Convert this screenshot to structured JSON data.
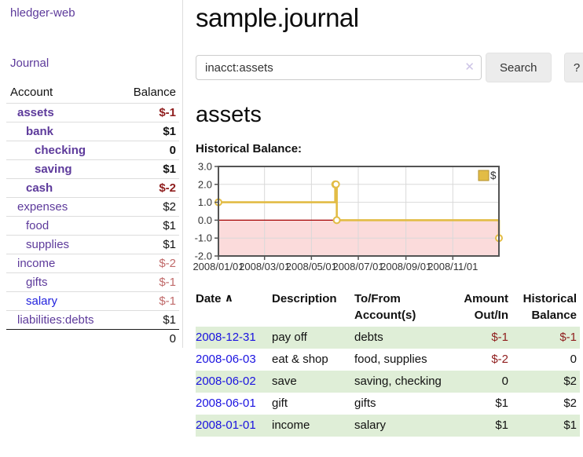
{
  "sidebar": {
    "app_title": "hledger-web",
    "journal_link": "Journal",
    "accounts_table": {
      "account_header": "Account",
      "balance_header": "Balance",
      "rows": [
        {
          "name": "assets",
          "balance": "$-1",
          "depth": 1,
          "bold": true,
          "balance_style": "neg-strong",
          "link_style": "purple"
        },
        {
          "name": "bank",
          "balance": "$1",
          "depth": 2,
          "bold": true,
          "balance_style": "",
          "link_style": "purple"
        },
        {
          "name": "checking",
          "balance": "0",
          "depth": 3,
          "bold": true,
          "balance_style": "",
          "link_style": "purple"
        },
        {
          "name": "saving",
          "balance": "$1",
          "depth": 3,
          "bold": true,
          "balance_style": "",
          "link_style": "purple"
        },
        {
          "name": "cash",
          "balance": "$-2",
          "depth": 2,
          "bold": true,
          "balance_style": "neg-strong",
          "link_style": "purple"
        },
        {
          "name": "expenses",
          "balance": "$2",
          "depth": 1,
          "bold": false,
          "balance_style": "",
          "link_style": "purple"
        },
        {
          "name": "food",
          "balance": "$1",
          "depth": 2,
          "bold": false,
          "balance_style": "",
          "link_style": "purple"
        },
        {
          "name": "supplies",
          "balance": "$1",
          "depth": 2,
          "bold": false,
          "balance_style": "",
          "link_style": "purple"
        },
        {
          "name": "income",
          "balance": "$-2",
          "depth": 1,
          "bold": false,
          "balance_style": "neg-soft",
          "link_style": "purple"
        },
        {
          "name": "gifts",
          "balance": "$-1",
          "depth": 2,
          "bold": false,
          "balance_style": "neg-soft",
          "link_style": "purple"
        },
        {
          "name": "salary",
          "balance": "$-1",
          "depth": 2,
          "bold": false,
          "balance_style": "neg-soft",
          "link_style": "blue"
        },
        {
          "name": "liabilities:debts",
          "balance": "$1",
          "depth": 1,
          "bold": false,
          "balance_style": "",
          "link_style": "purple"
        }
      ],
      "total": "0"
    }
  },
  "main": {
    "title": "sample.journal",
    "search": {
      "value": "inacct:assets",
      "clear_icon": "✕",
      "search_button": "Search",
      "help_button": "?"
    },
    "account_heading": "assets",
    "chart_title": "Historical Balance:",
    "register": {
      "headers": {
        "date": "Date",
        "sort_icon": "∧",
        "description": "Description",
        "accounts": "To/From Account(s)",
        "amount": "Amount Out/In",
        "balance": "Historical Balance"
      },
      "rows": [
        {
          "date": "2008-12-31",
          "description": "pay off",
          "accounts": "debts",
          "amount": "$-1",
          "balance": "$-1",
          "amount_style": "neg",
          "balance_style": "neg",
          "shaded": true
        },
        {
          "date": "2008-06-03",
          "description": "eat & shop",
          "accounts": "food, supplies",
          "amount": "$-2",
          "balance": "0",
          "amount_style": "neg",
          "balance_style": "",
          "shaded": false
        },
        {
          "date": "2008-06-02",
          "description": "save",
          "accounts": "saving, checking",
          "amount": "0",
          "balance": "$2",
          "amount_style": "",
          "balance_style": "",
          "shaded": true
        },
        {
          "date": "2008-06-01",
          "description": "gift",
          "accounts": "gifts",
          "amount": "$1",
          "balance": "$2",
          "amount_style": "",
          "balance_style": "",
          "shaded": false
        },
        {
          "date": "2008-01-01",
          "description": "income",
          "accounts": "salary",
          "amount": "$1",
          "balance": "$1",
          "amount_style": "",
          "balance_style": "",
          "shaded": true
        }
      ]
    }
  },
  "chart_data": {
    "type": "line",
    "step": true,
    "title": "Historical Balance:",
    "series": [
      {
        "name": "$",
        "color": "#e2bc45",
        "points": [
          [
            "2008-01-01",
            1
          ],
          [
            "2008-06-01",
            2
          ],
          [
            "2008-06-02",
            2
          ],
          [
            "2008-06-03",
            0
          ],
          [
            "2008-12-31",
            -1
          ]
        ]
      }
    ],
    "x_range": [
      "2008-01-01",
      "2008-12-31"
    ],
    "x_ticks": [
      "2008/01/01",
      "2008/03/01",
      "2008/05/01",
      "2008/07/01",
      "2008/09/01",
      "2008/11/01"
    ],
    "y_ticks": [
      3.0,
      2.0,
      1.0,
      0.0,
      -1.0,
      -2.0
    ],
    "ylim": [
      -2,
      3
    ],
    "grid": true,
    "legend_position": "top-right",
    "legend_label": "$",
    "negative_region_fill": "#fbdbdb",
    "zero_line_color": "#a40000",
    "border_color": "#545454",
    "grid_color": "#d9d9d9"
  },
  "colors": {
    "link_purple": "#5d3a9b",
    "link_blue": "#2222dd",
    "date_link_blue": "#1a12e0",
    "negative_strong": "#8f1d1d",
    "negative_soft": "#c06a6a",
    "row_shading_green": "#dfeed7",
    "series_gold": "#e2bc45"
  }
}
